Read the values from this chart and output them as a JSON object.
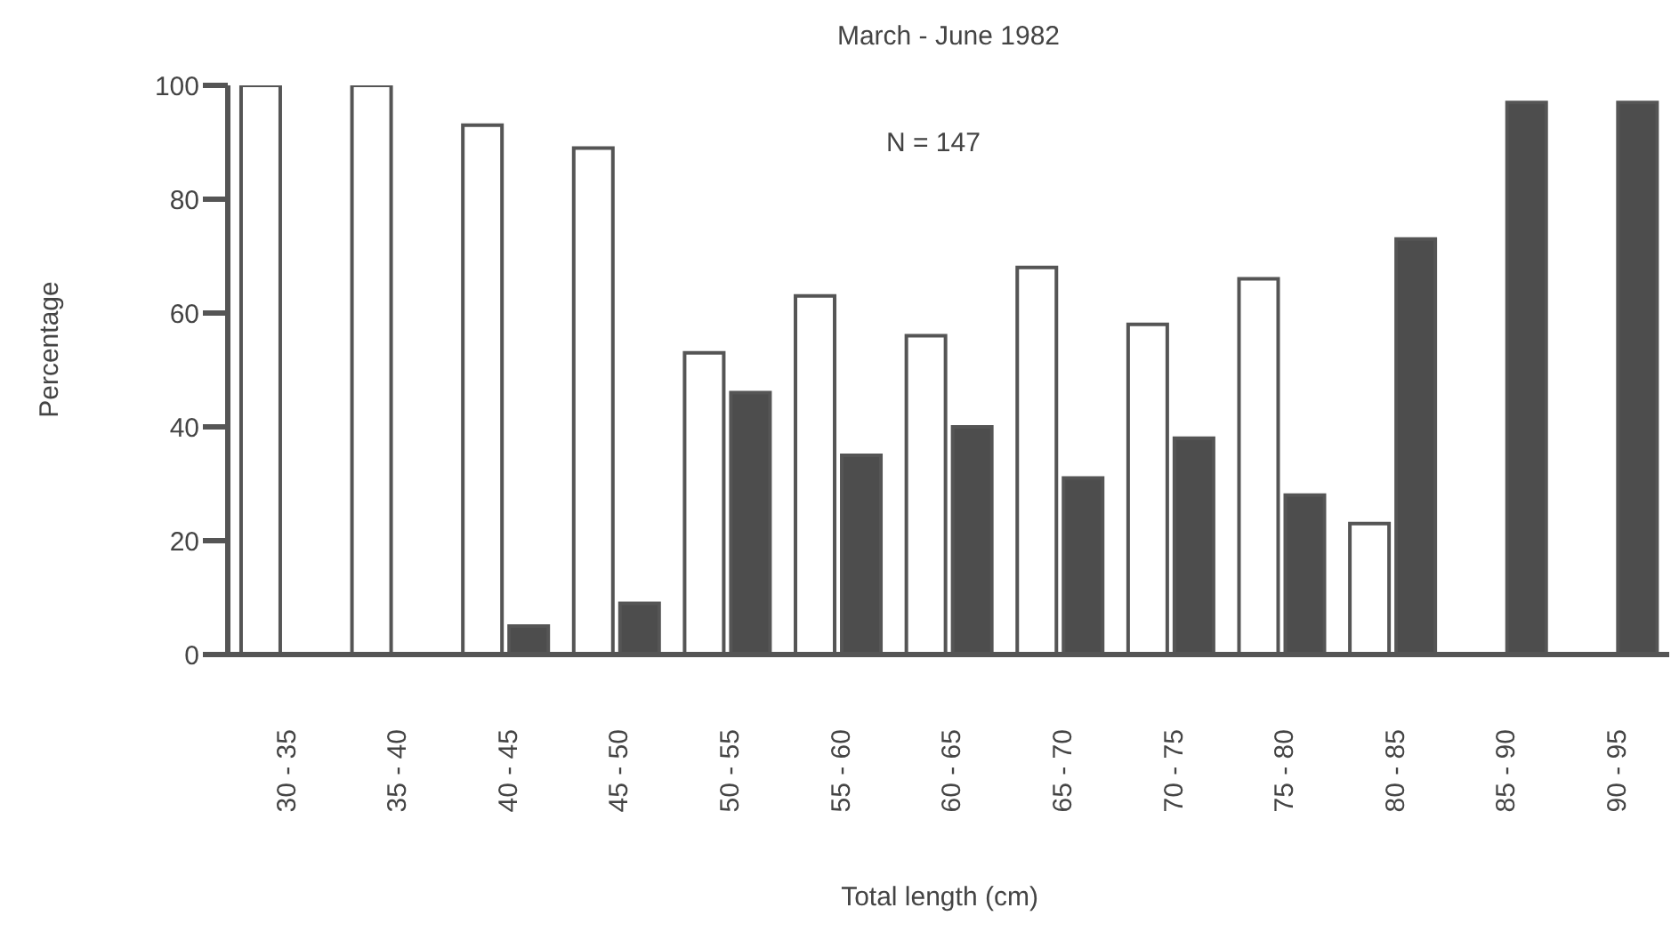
{
  "chart_data": {
    "type": "bar",
    "title": "March - June 1982",
    "xlabel": "Total length (cm)",
    "ylabel": "Percentage",
    "annotations": [
      "N = 147"
    ],
    "categories": [
      "30 - 35",
      "35 - 40",
      "40 - 45",
      "45 - 50",
      "50 - 55",
      "55 - 60",
      "60 - 65",
      "65 - 70",
      "70 - 75",
      "75 - 80",
      "80 - 85",
      "85 - 90",
      "90 - 95"
    ],
    "series": [
      {
        "color": "#ffffff",
        "values": [
          100,
          100,
          93,
          89,
          53,
          63,
          56,
          68,
          58,
          66,
          23,
          0,
          0
        ]
      },
      {
        "color": "#4d4d4d",
        "values": [
          0,
          0,
          5,
          9,
          46,
          35,
          40,
          31,
          38,
          28,
          73,
          97,
          97
        ]
      }
    ],
    "ylim": [
      0,
      100
    ],
    "yticks": [
      0,
      20,
      40,
      60,
      80,
      100
    ],
    "grid": false,
    "legend": false
  }
}
